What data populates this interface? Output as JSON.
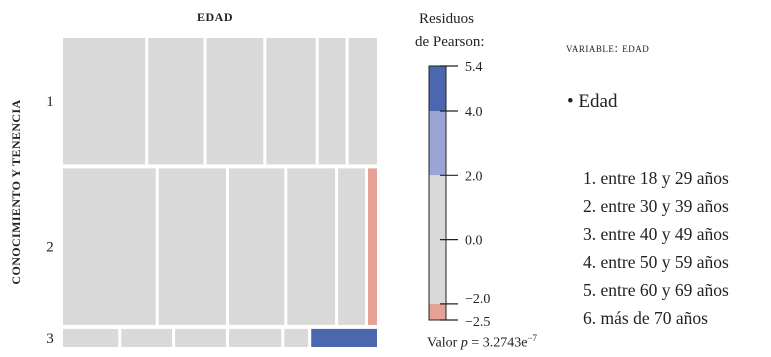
{
  "chart_data": {
    "type": "mosaic",
    "title": "",
    "xlabel": "EDAD",
    "ylabel": "CONOCIMIENTO Y TENENCIA",
    "rows": [
      "1",
      "2",
      "3"
    ],
    "columns": [
      "1",
      "2",
      "3",
      "4",
      "5",
      "6"
    ],
    "row_proportions": [
      0.42,
      0.52,
      0.06
    ],
    "cell_column_proportions": [
      [
        0.275,
        0.185,
        0.19,
        0.165,
        0.09,
        0.095
      ],
      [
        0.31,
        0.225,
        0.185,
        0.16,
        0.09,
        0.03
      ],
      [
        0.185,
        0.17,
        0.17,
        0.175,
        0.08,
        0.22
      ]
    ],
    "residual_colors": [
      [
        "#d9d9d9",
        "#d9d9d9",
        "#d9d9d9",
        "#d9d9d9",
        "#d9d9d9",
        "#d9d9d9"
      ],
      [
        "#d9d9d9",
        "#d9d9d9",
        "#d9d9d9",
        "#d9d9d9",
        "#d9d9d9",
        "#e5a196"
      ],
      [
        "#d9d9d9",
        "#d9d9d9",
        "#d9d9d9",
        "#d9d9d9",
        "#d9d9d9",
        "#4a67b0"
      ]
    ],
    "colorbar": {
      "title": "Residuos de Pearson:",
      "range": [
        -2.5,
        5.4
      ],
      "ticks": [
        "5.4",
        "4.0",
        "2.0",
        "0.0",
        "−2.0",
        "−2.5"
      ],
      "tick_values": [
        5.4,
        4.0,
        2.0,
        0.0,
        -2.0,
        -2.5
      ],
      "bands": [
        {
          "from": 4.0,
          "to": 5.4,
          "color": "#4a67b0"
        },
        {
          "from": 2.0,
          "to": 4.0,
          "color": "#9aa5d6"
        },
        {
          "from": -2.0,
          "to": 2.0,
          "color": "#d9d9d9"
        },
        {
          "from": -2.5,
          "to": -2.0,
          "color": "#e5a196"
        }
      ]
    },
    "p_value_label": "Valor ",
    "p_value_symbol": "p",
    "p_value_eq": " = 3.2743e",
    "p_value_exp": "−7"
  },
  "legend": {
    "title": "variable: edad",
    "variable": "Edad",
    "items": [
      "1. entre 18 y 29 años",
      "2. entre 30 y 39 años",
      "3. entre 40 y 49 años",
      "4. entre 50 y 59 años",
      "5. entre 60 y 69 años",
      "6. más de 70 años"
    ]
  }
}
